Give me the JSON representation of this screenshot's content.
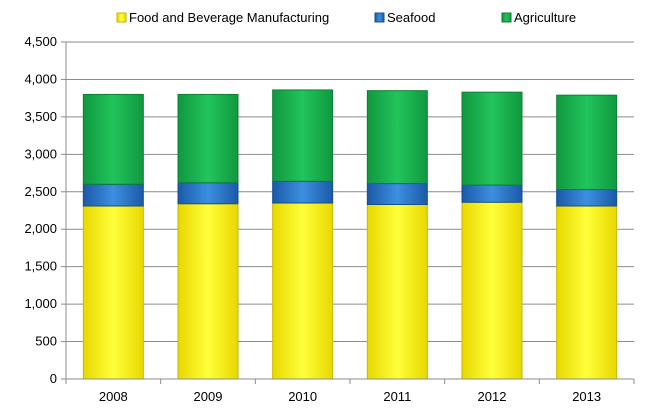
{
  "chart_data": {
    "type": "bar",
    "stacked": true,
    "title": "",
    "xlabel": "",
    "ylabel": "",
    "categories": [
      "2008",
      "2009",
      "2010",
      "2011",
      "2012",
      "2013"
    ],
    "ylim": [
      0,
      4500
    ],
    "yticks": [
      0,
      500,
      1000,
      1500,
      2000,
      2500,
      3000,
      3500,
      4000,
      4500
    ],
    "ytick_labels": [
      "0",
      "500",
      "1,000",
      "1,500",
      "2,000",
      "2,500",
      "3,000",
      "3,500",
      "4,000",
      "4,500"
    ],
    "grid": true,
    "legend_position": "top",
    "series": [
      {
        "name": "Food and Beverage Manufacturing",
        "color": "#f0f000",
        "values": [
          2310,
          2340,
          2350,
          2330,
          2360,
          2310
        ]
      },
      {
        "name": "Seafood",
        "color": "#1f6fc4",
        "values": [
          290,
          280,
          290,
          280,
          230,
          220
        ]
      },
      {
        "name": "Agriculture",
        "color": "#17b04f",
        "values": [
          1200,
          1180,
          1220,
          1240,
          1240,
          1260
        ]
      }
    ]
  }
}
